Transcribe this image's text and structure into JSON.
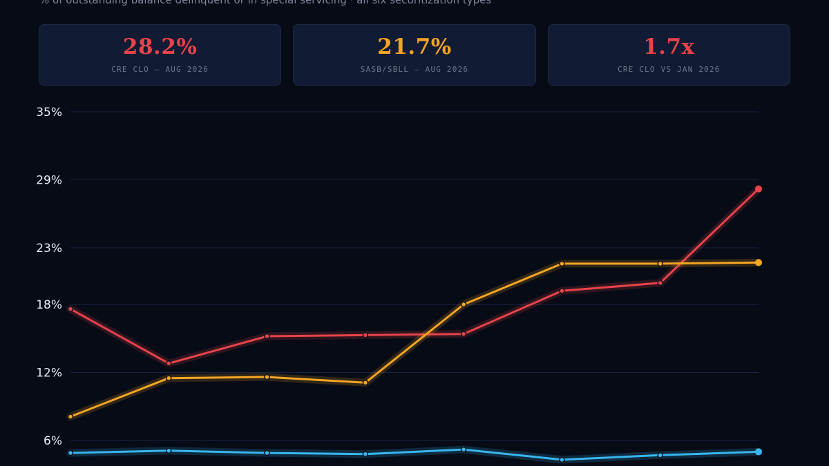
{
  "header": {
    "subtitle": "% of outstanding balance delinquent or in special servicing · all six securitization types"
  },
  "cards": [
    {
      "value": "28.2%",
      "label": "CRE CLO — AUG 2026",
      "color": "#e8434a"
    },
    {
      "value": "21.7%",
      "label": "SASB/SBLL — AUG 2026",
      "color": "#f5a524"
    },
    {
      "value": "1.7x",
      "label": "CRE CLO VS JAN 2026",
      "color": "#e8434a"
    }
  ],
  "chart_data": {
    "type": "line",
    "title": "",
    "xlabel": "",
    "ylabel": "",
    "ylim": [
      6,
      35
    ],
    "yticks": [
      "35%",
      "29%",
      "23%",
      "18%",
      "12%",
      "6%"
    ],
    "ytick_values": [
      35,
      29,
      23,
      18,
      12,
      6
    ],
    "grid": true,
    "x": [
      1,
      2,
      3,
      4,
      5,
      6,
      7,
      8
    ],
    "series": [
      {
        "color": "#e8434a",
        "values": [
          17.6,
          12.8,
          15.2,
          15.3,
          15.4,
          19.2,
          19.9,
          28.2
        ]
      },
      {
        "color": "#f5a524",
        "values": [
          8.1,
          11.5,
          11.6,
          11.1,
          18.0,
          21.6,
          21.6,
          21.7
        ]
      },
      {
        "color": "#38b6f0",
        "values": [
          4.9,
          5.1,
          4.9,
          4.8,
          5.2,
          4.3,
          4.7,
          5.0
        ]
      }
    ]
  }
}
